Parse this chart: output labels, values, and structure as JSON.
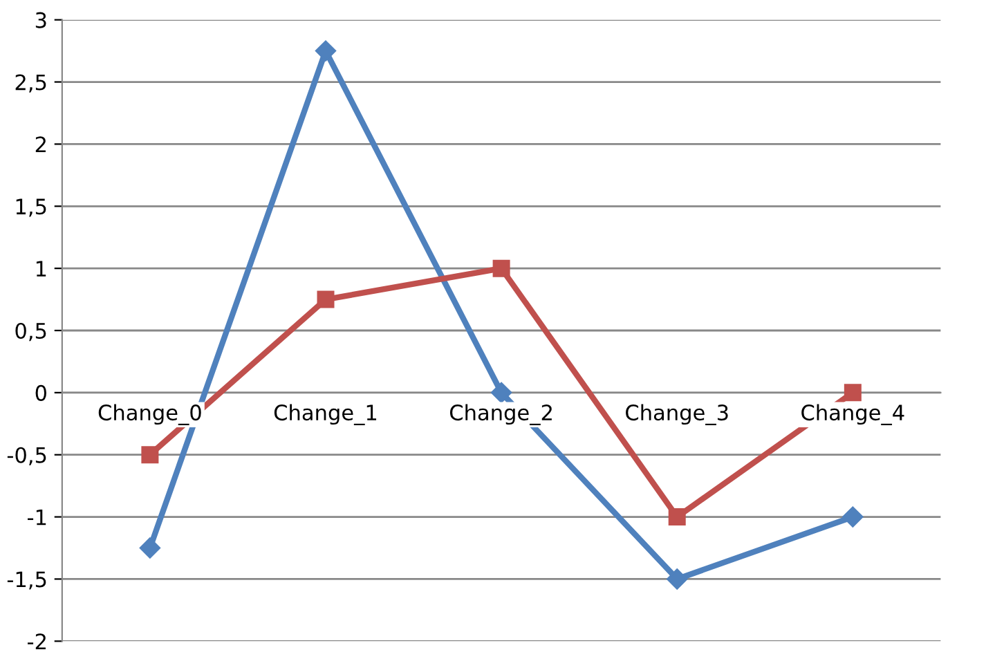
{
  "chart_data": {
    "type": "line",
    "categories": [
      "Change_0",
      "Change_1",
      "Change_2",
      "Change_3",
      "Change_4"
    ],
    "series": [
      {
        "color": "#4f81bd",
        "marker": "diamond",
        "values": [
          -1.25,
          2.75,
          0,
          -1.5,
          -1
        ]
      },
      {
        "color": "#c0504d",
        "marker": "square",
        "values": [
          -0.5,
          0.75,
          1,
          -1,
          0
        ]
      }
    ],
    "ylim": [
      -2,
      3
    ],
    "yticks": [
      {
        "value": -2,
        "label": "-2"
      },
      {
        "value": -1.5,
        "label": "-1,5"
      },
      {
        "value": -1,
        "label": "-1"
      },
      {
        "value": -0.5,
        "label": "-0,5"
      },
      {
        "value": 0,
        "label": "0"
      },
      {
        "value": 0.5,
        "label": "0,5"
      },
      {
        "value": 1,
        "label": "1"
      },
      {
        "value": 1.5,
        "label": "1,5"
      },
      {
        "value": 2,
        "label": "2"
      },
      {
        "value": 2.5,
        "label": "2,5"
      },
      {
        "value": 3,
        "label": "3"
      }
    ],
    "grid": "y",
    "line_style": "solid",
    "legend": false
  }
}
